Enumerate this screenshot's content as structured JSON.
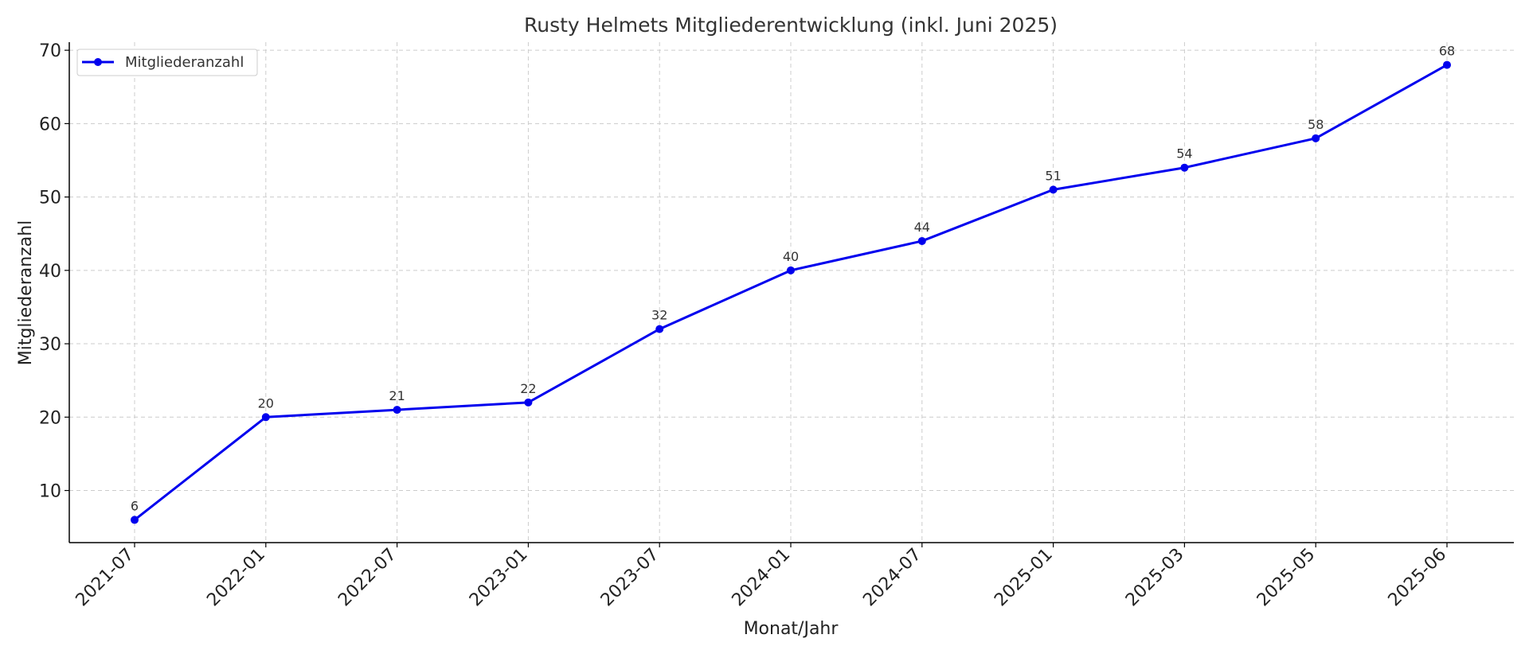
{
  "chart_data": {
    "type": "line",
    "title": "Rusty Helmets Mitgliederentwicklung (inkl. Juni 2025)",
    "xlabel": "Monat/Jahr",
    "ylabel": "Mitgliederanzahl",
    "categories": [
      "2021-07",
      "2022-01",
      "2022-07",
      "2023-01",
      "2023-07",
      "2024-01",
      "2024-07",
      "2025-01",
      "2025-03",
      "2025-05",
      "2025-06"
    ],
    "series": [
      {
        "name": "Mitgliederanzahl",
        "values": [
          6,
          20,
          21,
          22,
          32,
          40,
          44,
          51,
          54,
          58,
          68
        ],
        "color": "#0000ee"
      }
    ],
    "yticks": [
      10,
      20,
      30,
      40,
      50,
      60,
      70
    ],
    "ylim": [
      2.9,
      71.1
    ],
    "grid": true,
    "legend_position": "top-left",
    "data_labels": true,
    "marker": "circle"
  }
}
